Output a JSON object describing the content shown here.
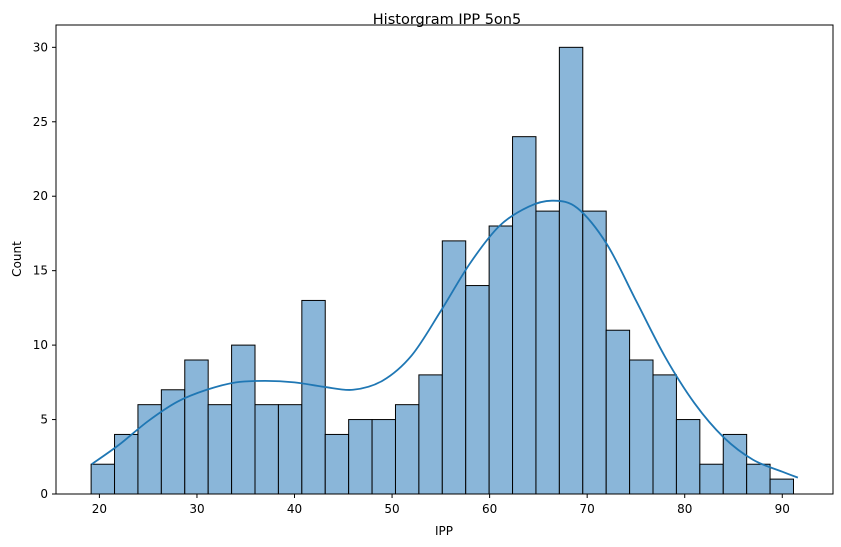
{
  "chart_data": {
    "type": "bar",
    "subtype": "histogram-with-kde",
    "title": "Historgram IPP 5on5",
    "xlabel": "IPP",
    "ylabel": "Count",
    "xlim": [
      15.55,
      95.2
    ],
    "ylim": [
      0,
      31.5
    ],
    "xticks": [
      20,
      30,
      40,
      50,
      60,
      70,
      80,
      90
    ],
    "yticks": [
      0,
      5,
      10,
      15,
      20,
      25,
      30
    ],
    "bin_start": 19.15,
    "bin_width": 2.4,
    "counts": [
      2,
      4,
      6,
      7,
      9,
      6,
      10,
      6,
      6,
      13,
      4,
      5,
      5,
      6,
      8,
      17,
      14,
      18,
      24,
      19,
      30,
      19,
      11,
      9,
      8,
      5,
      2,
      4,
      2,
      1
    ],
    "bar_color": "#8ab6d9",
    "edge_color": "#000000",
    "kde": {
      "color": "#1f77b4",
      "x": [
        19.2,
        22,
        25,
        28,
        31,
        34,
        37,
        40,
        43,
        46,
        49,
        52,
        55,
        58,
        61,
        64,
        66.5,
        69,
        72,
        75,
        78,
        81,
        84,
        87,
        90,
        91.6
      ],
      "y": [
        2.0,
        3.3,
        4.9,
        6.2,
        7.0,
        7.5,
        7.6,
        7.5,
        7.2,
        7.0,
        7.6,
        9.3,
        12.3,
        15.5,
        18.0,
        19.3,
        19.7,
        19.2,
        16.8,
        13.0,
        9.2,
        6.1,
        3.8,
        2.3,
        1.5,
        1.1
      ]
    },
    "grid": false,
    "legend": "none"
  }
}
